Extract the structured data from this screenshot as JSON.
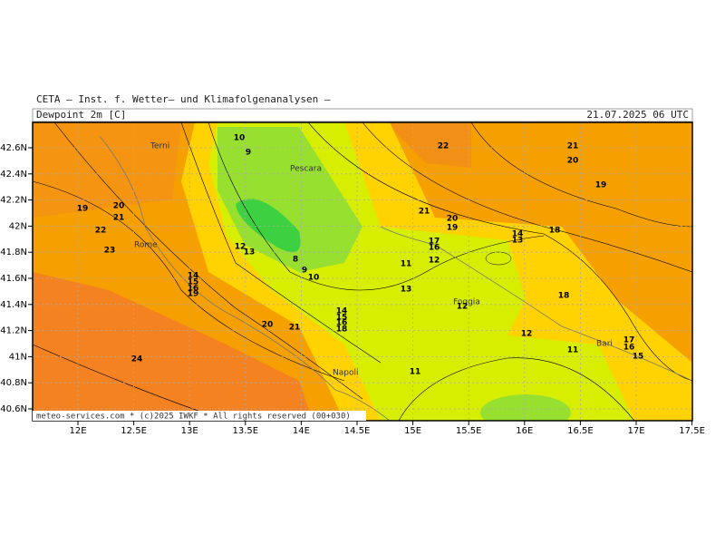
{
  "header": {
    "institute": "CETA – Inst. f. Wetter– und Klimafolgenanalysen –",
    "field": "Dewpoint 2m [C]",
    "valid": "21.07.2025 06 UTC"
  },
  "map": {
    "lon_labels": [
      "12E",
      "12.5E",
      "13E",
      "13.5E",
      "14E",
      "14.5E",
      "15E",
      "15.5E",
      "16E",
      "16.5E",
      "17E",
      "17.5E"
    ],
    "lat_labels": [
      "42.6N",
      "42.4N",
      "42.2N",
      "42N",
      "41.8N",
      "41.6N",
      "41.4N",
      "41.2N",
      "41N",
      "40.8N",
      "40.6N"
    ],
    "cities": [
      "Terni",
      "Pescara",
      "Rome",
      "Foggia",
      "Bari",
      "Napoli"
    ],
    "contour_labels": [
      10,
      9,
      22,
      21,
      20,
      19,
      19,
      20,
      21,
      22,
      23,
      12,
      13,
      21,
      20,
      19,
      17,
      16,
      14,
      13,
      18,
      8,
      9,
      10,
      11,
      12,
      13,
      12,
      18,
      14,
      15,
      16,
      19,
      14,
      15,
      16,
      18,
      20,
      21,
      12,
      11,
      17,
      16,
      15,
      24,
      11
    ],
    "footer": "meteo-services.com * (c)2025 IWKF * All rights reserved (00+030)"
  }
}
